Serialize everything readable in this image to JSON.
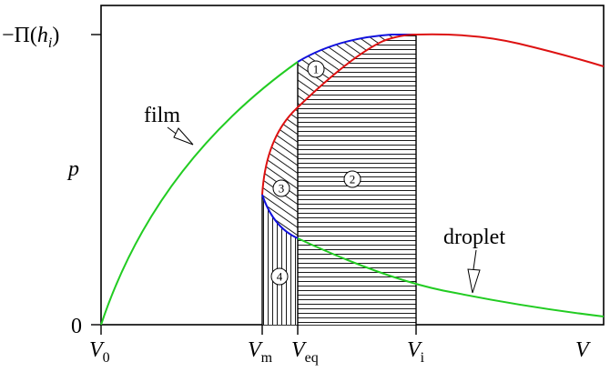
{
  "y_axis": {
    "top_tick_label": {
      "prefix": "−Π(",
      "var": "h",
      "sub": "i",
      "suffix": ")"
    },
    "zero_label": "0",
    "p_label": "p"
  },
  "x_axis": {
    "ticks": [
      {
        "key": "v0",
        "main": "V",
        "sub": "0"
      },
      {
        "key": "vm",
        "main": "V",
        "sub": "m"
      },
      {
        "key": "veq",
        "main": "V",
        "sub": "eq"
      },
      {
        "key": "vi",
        "main": "V",
        "sub": "i"
      }
    ],
    "end_label": "V"
  },
  "annotations": {
    "film": "film",
    "droplet": "droplet"
  },
  "regions": [
    "1",
    "2",
    "3",
    "4"
  ],
  "colors": {
    "film_curve": "#22cc22",
    "droplet_curve": "#22cc22",
    "unstable_branch": "#dd1111",
    "lower_branch": "#1111dd",
    "axes": "#000000"
  }
}
